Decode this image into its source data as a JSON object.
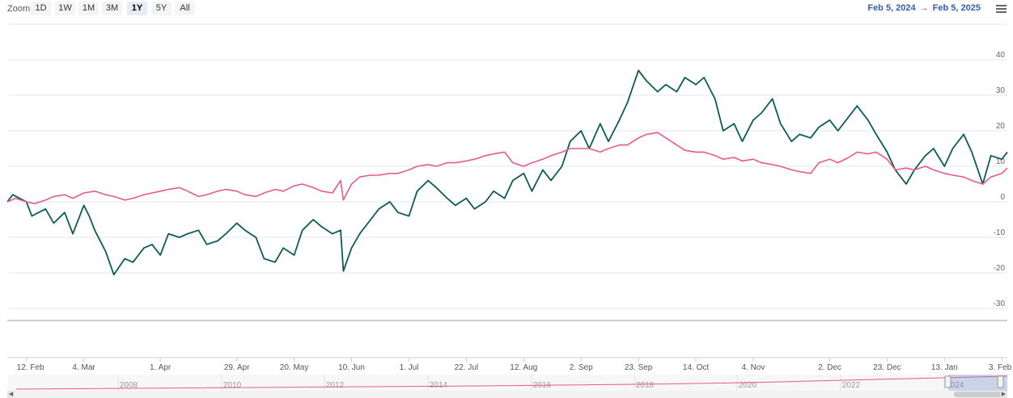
{
  "toolbar": {
    "zoom_label": "Zoom",
    "buttons": [
      "1D",
      "1W",
      "1M",
      "3M",
      "1Y",
      "5Y",
      "All"
    ],
    "active_button": "1Y",
    "range_from": "Feb 5, 2024",
    "range_arrow": "→",
    "range_to": "Feb 5, 2025",
    "menu_icon": "hamburger-menu-icon"
  },
  "chart_data": {
    "type": "line",
    "x_range": [
      "2024-02-05",
      "2025-02-05"
    ],
    "xticks": [
      "12. Feb",
      "4. Mar",
      "1. Apr",
      "29. Apr",
      "20. May",
      "10. Jun",
      "1. Jul",
      "22. Jul",
      "12. Aug",
      "2. Sep",
      "23. Sep",
      "14. Oct",
      "4. Nov",
      "2. Dec",
      "23. Dec",
      "13. Jan",
      "3. Feb"
    ],
    "xtick_dates": [
      "2024-02-12",
      "2024-03-04",
      "2024-04-01",
      "2024-04-29",
      "2024-05-20",
      "2024-06-10",
      "2024-07-01",
      "2024-07-22",
      "2024-08-12",
      "2024-09-02",
      "2024-09-23",
      "2024-10-14",
      "2024-11-04",
      "2024-12-02",
      "2024-12-23",
      "2025-01-13",
      "2025-02-03"
    ],
    "y_range": [
      -30,
      40
    ],
    "yticks": [
      40,
      30,
      20,
      10,
      0,
      -10,
      -20,
      -30
    ],
    "grid": true,
    "series": [
      {
        "color": "#0b5c55",
        "points": [
          [
            "2024-02-05",
            0
          ],
          [
            "2024-02-07",
            2
          ],
          [
            "2024-02-12",
            0
          ],
          [
            "2024-02-14",
            -4
          ],
          [
            "2024-02-19",
            -2
          ],
          [
            "2024-02-22",
            -6
          ],
          [
            "2024-02-26",
            -3
          ],
          [
            "2024-02-29",
            -9
          ],
          [
            "2024-03-04",
            -1
          ],
          [
            "2024-03-06",
            -4
          ],
          [
            "2024-03-08",
            -8
          ],
          [
            "2024-03-12",
            -14
          ],
          [
            "2024-03-15",
            -20.5
          ],
          [
            "2024-03-19",
            -16
          ],
          [
            "2024-03-22",
            -17
          ],
          [
            "2024-03-26",
            -13
          ],
          [
            "2024-03-29",
            -12
          ],
          [
            "2024-04-01",
            -15
          ],
          [
            "2024-04-04",
            -9
          ],
          [
            "2024-04-08",
            -10
          ],
          [
            "2024-04-11",
            -9
          ],
          [
            "2024-04-15",
            -8
          ],
          [
            "2024-04-18",
            -12
          ],
          [
            "2024-04-22",
            -11
          ],
          [
            "2024-04-25",
            -9
          ],
          [
            "2024-04-29",
            -6
          ],
          [
            "2024-05-02",
            -8
          ],
          [
            "2024-05-06",
            -10
          ],
          [
            "2024-05-09",
            -16
          ],
          [
            "2024-05-13",
            -17
          ],
          [
            "2024-05-16",
            -13
          ],
          [
            "2024-05-20",
            -15
          ],
          [
            "2024-05-23",
            -8
          ],
          [
            "2024-05-27",
            -5
          ],
          [
            "2024-05-30",
            -7
          ],
          [
            "2024-06-03",
            -9
          ],
          [
            "2024-06-06",
            -8
          ],
          [
            "2024-06-07",
            -19.5
          ],
          [
            "2024-06-10",
            -13
          ],
          [
            "2024-06-13",
            -9
          ],
          [
            "2024-06-17",
            -5
          ],
          [
            "2024-06-20",
            -2
          ],
          [
            "2024-06-24",
            0
          ],
          [
            "2024-06-27",
            -3
          ],
          [
            "2024-07-01",
            -4
          ],
          [
            "2024-07-04",
            3
          ],
          [
            "2024-07-08",
            6
          ],
          [
            "2024-07-11",
            4
          ],
          [
            "2024-07-15",
            1
          ],
          [
            "2024-07-18",
            -1
          ],
          [
            "2024-07-22",
            1
          ],
          [
            "2024-07-25",
            -2
          ],
          [
            "2024-07-29",
            0
          ],
          [
            "2024-08-01",
            3
          ],
          [
            "2024-08-05",
            1
          ],
          [
            "2024-08-08",
            6
          ],
          [
            "2024-08-12",
            8
          ],
          [
            "2024-08-15",
            3
          ],
          [
            "2024-08-19",
            9
          ],
          [
            "2024-08-22",
            6
          ],
          [
            "2024-08-26",
            10
          ],
          [
            "2024-08-29",
            17
          ],
          [
            "2024-09-02",
            20
          ],
          [
            "2024-09-05",
            15
          ],
          [
            "2024-09-09",
            22
          ],
          [
            "2024-09-12",
            17
          ],
          [
            "2024-09-16",
            23
          ],
          [
            "2024-09-19",
            28
          ],
          [
            "2024-09-23",
            37
          ],
          [
            "2024-09-26",
            34
          ],
          [
            "2024-09-30",
            31
          ],
          [
            "2024-10-03",
            33
          ],
          [
            "2024-10-07",
            31
          ],
          [
            "2024-10-10",
            35
          ],
          [
            "2024-10-14",
            33
          ],
          [
            "2024-10-17",
            35
          ],
          [
            "2024-10-21",
            29
          ],
          [
            "2024-10-24",
            20
          ],
          [
            "2024-10-28",
            22
          ],
          [
            "2024-10-31",
            17
          ],
          [
            "2024-11-04",
            23
          ],
          [
            "2024-11-07",
            25
          ],
          [
            "2024-11-11",
            29
          ],
          [
            "2024-11-14",
            22
          ],
          [
            "2024-11-18",
            17
          ],
          [
            "2024-11-21",
            19
          ],
          [
            "2024-11-25",
            18
          ],
          [
            "2024-11-28",
            21
          ],
          [
            "2024-12-02",
            23
          ],
          [
            "2024-12-05",
            20
          ],
          [
            "2024-12-09",
            24
          ],
          [
            "2024-12-12",
            27
          ],
          [
            "2024-12-16",
            23
          ],
          [
            "2024-12-19",
            19
          ],
          [
            "2024-12-23",
            14
          ],
          [
            "2024-12-26",
            9
          ],
          [
            "2024-12-30",
            5
          ],
          [
            "2025-01-02",
            9
          ],
          [
            "2025-01-06",
            13
          ],
          [
            "2025-01-09",
            15
          ],
          [
            "2025-01-13",
            10
          ],
          [
            "2025-01-16",
            15
          ],
          [
            "2025-01-20",
            19
          ],
          [
            "2025-01-23",
            14
          ],
          [
            "2025-01-27",
            5
          ],
          [
            "2025-01-30",
            13
          ],
          [
            "2025-02-03",
            12
          ],
          [
            "2025-02-05",
            14
          ]
        ]
      },
      {
        "color": "#e85a8a",
        "points": [
          [
            "2024-02-05",
            0
          ],
          [
            "2024-02-08",
            1
          ],
          [
            "2024-02-12",
            0
          ],
          [
            "2024-02-15",
            -0.5
          ],
          [
            "2024-02-19",
            0.5
          ],
          [
            "2024-02-22",
            1.5
          ],
          [
            "2024-02-26",
            2
          ],
          [
            "2024-02-29",
            1
          ],
          [
            "2024-03-04",
            2.5
          ],
          [
            "2024-03-08",
            3
          ],
          [
            "2024-03-12",
            2
          ],
          [
            "2024-03-15",
            1.5
          ],
          [
            "2024-03-19",
            0.5
          ],
          [
            "2024-03-22",
            1
          ],
          [
            "2024-03-26",
            2
          ],
          [
            "2024-03-29",
            2.5
          ],
          [
            "2024-04-01",
            3
          ],
          [
            "2024-04-04",
            3.5
          ],
          [
            "2024-04-08",
            4
          ],
          [
            "2024-04-11",
            3
          ],
          [
            "2024-04-15",
            1.5
          ],
          [
            "2024-04-18",
            2
          ],
          [
            "2024-04-22",
            3
          ],
          [
            "2024-04-25",
            3.5
          ],
          [
            "2024-04-29",
            3
          ],
          [
            "2024-05-02",
            2
          ],
          [
            "2024-05-06",
            1.5
          ],
          [
            "2024-05-09",
            2.5
          ],
          [
            "2024-05-13",
            3.5
          ],
          [
            "2024-05-16",
            3
          ],
          [
            "2024-05-20",
            4.5
          ],
          [
            "2024-05-23",
            5
          ],
          [
            "2024-05-27",
            4
          ],
          [
            "2024-05-30",
            3
          ],
          [
            "2024-06-03",
            2.5
          ],
          [
            "2024-06-06",
            6
          ],
          [
            "2024-06-07",
            0.5
          ],
          [
            "2024-06-10",
            5
          ],
          [
            "2024-06-13",
            7
          ],
          [
            "2024-06-17",
            7.5
          ],
          [
            "2024-06-20",
            7.5
          ],
          [
            "2024-06-24",
            8
          ],
          [
            "2024-06-27",
            8
          ],
          [
            "2024-07-01",
            9
          ],
          [
            "2024-07-04",
            10
          ],
          [
            "2024-07-08",
            10.5
          ],
          [
            "2024-07-11",
            10
          ],
          [
            "2024-07-15",
            11
          ],
          [
            "2024-07-18",
            11
          ],
          [
            "2024-07-22",
            11.5
          ],
          [
            "2024-07-25",
            12
          ],
          [
            "2024-07-29",
            13
          ],
          [
            "2024-08-01",
            13.5
          ],
          [
            "2024-08-05",
            14
          ],
          [
            "2024-08-08",
            11
          ],
          [
            "2024-08-12",
            10
          ],
          [
            "2024-08-15",
            11
          ],
          [
            "2024-08-19",
            12
          ],
          [
            "2024-08-22",
            13
          ],
          [
            "2024-08-26",
            14
          ],
          [
            "2024-08-29",
            15
          ],
          [
            "2024-09-02",
            15
          ],
          [
            "2024-09-05",
            15
          ],
          [
            "2024-09-09",
            14
          ],
          [
            "2024-09-12",
            15
          ],
          [
            "2024-09-16",
            16
          ],
          [
            "2024-09-19",
            16
          ],
          [
            "2024-09-23",
            18
          ],
          [
            "2024-09-26",
            19
          ],
          [
            "2024-09-30",
            19.5
          ],
          [
            "2024-10-03",
            18
          ],
          [
            "2024-10-07",
            16
          ],
          [
            "2024-10-10",
            14.5
          ],
          [
            "2024-10-14",
            14
          ],
          [
            "2024-10-17",
            14
          ],
          [
            "2024-10-21",
            13
          ],
          [
            "2024-10-24",
            12
          ],
          [
            "2024-10-28",
            12.5
          ],
          [
            "2024-10-31",
            11.5
          ],
          [
            "2024-11-04",
            12
          ],
          [
            "2024-11-07",
            11
          ],
          [
            "2024-11-11",
            10.5
          ],
          [
            "2024-11-14",
            10
          ],
          [
            "2024-11-18",
            9
          ],
          [
            "2024-11-21",
            8.5
          ],
          [
            "2024-11-25",
            8
          ],
          [
            "2024-11-28",
            11
          ],
          [
            "2024-12-02",
            12
          ],
          [
            "2024-12-05",
            11
          ],
          [
            "2024-12-09",
            12.5
          ],
          [
            "2024-12-12",
            14
          ],
          [
            "2024-12-16",
            13.5
          ],
          [
            "2024-12-19",
            14
          ],
          [
            "2024-12-23",
            12
          ],
          [
            "2024-12-26",
            9
          ],
          [
            "2024-12-30",
            9.5
          ],
          [
            "2025-01-02",
            9
          ],
          [
            "2025-01-06",
            10
          ],
          [
            "2025-01-09",
            9
          ],
          [
            "2025-01-13",
            8
          ],
          [
            "2025-01-16",
            7.5
          ],
          [
            "2025-01-20",
            7
          ],
          [
            "2025-01-23",
            6
          ],
          [
            "2025-01-27",
            5
          ],
          [
            "2025-01-30",
            7
          ],
          [
            "2025-02-03",
            8
          ],
          [
            "2025-02-05",
            9.5
          ]
        ]
      }
    ]
  },
  "navigator": {
    "year_labels": [
      "2008",
      "2010",
      "2012",
      "2014",
      "2016",
      "2018",
      "2020",
      "2022",
      "2024"
    ],
    "scroll_left": "◀",
    "scroll_right": "▶",
    "handle_grip": "|||"
  }
}
